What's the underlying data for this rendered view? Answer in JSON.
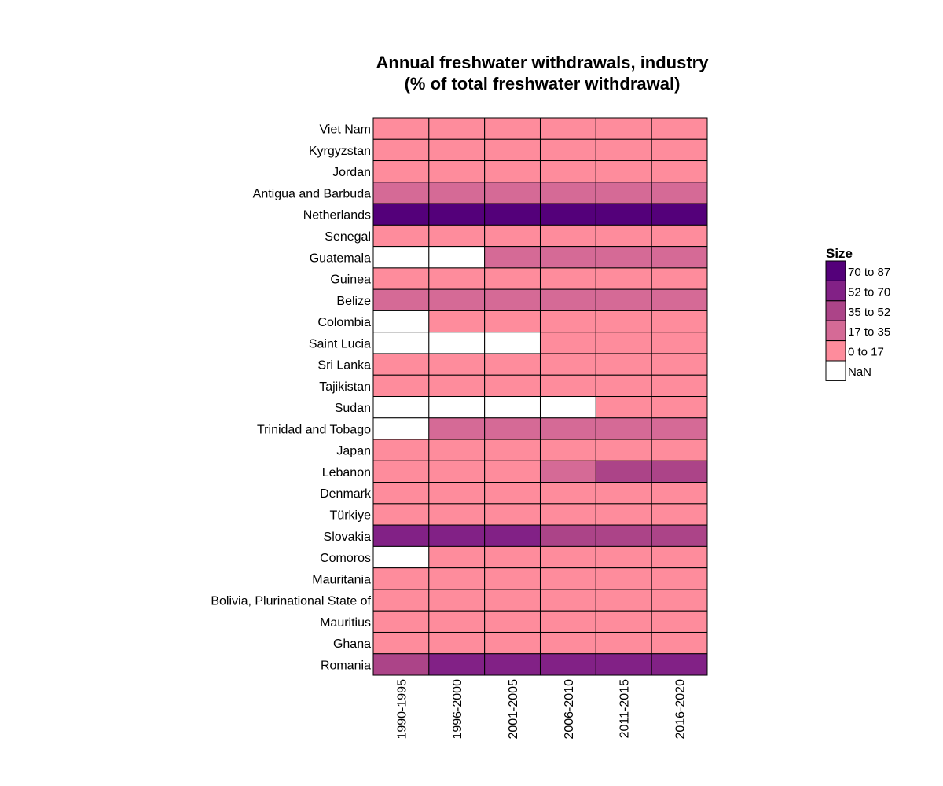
{
  "chart_data": {
    "type": "heatmap",
    "title": "Annual freshwater withdrawals, industry",
    "subtitle": "(% of total freshwater withdrawal)",
    "x_categories": [
      "1990-1995",
      "1996-2000",
      "2001-2005",
      "2006-2010",
      "2011-2015",
      "2016-2020"
    ],
    "y_categories": [
      "Viet Nam",
      "Kyrgyzstan",
      "Jordan",
      "Antigua and Barbuda",
      "Netherlands",
      "Senegal",
      "Guatemala",
      "Guinea",
      "Belize",
      "Colombia",
      "Saint Lucia",
      "Sri Lanka",
      "Tajikistan",
      "Sudan",
      "Trinidad and Tobago",
      "Japan",
      "Lebanon",
      "Denmark",
      "Türkiye",
      "Slovakia",
      "Comoros",
      "Mauritania",
      "Bolivia, Plurinational State of",
      "Mauritius",
      "Ghana",
      "Romania"
    ],
    "values": [
      [
        3,
        3,
        3,
        3,
        3,
        3
      ],
      [
        3,
        3,
        3,
        3,
        3,
        3
      ],
      [
        4,
        4,
        4,
        4,
        4,
        4
      ],
      [
        20,
        20,
        20,
        20,
        20,
        20
      ],
      [
        80,
        80,
        80,
        80,
        80,
        80
      ],
      [
        5,
        5,
        5,
        5,
        5,
        5
      ],
      [
        null,
        null,
        20,
        20,
        20,
        20
      ],
      [
        5,
        5,
        5,
        5,
        5,
        5
      ],
      [
        20,
        20,
        20,
        20,
        20,
        20
      ],
      [
        null,
        3,
        3,
        3,
        3,
        3
      ],
      [
        null,
        null,
        null,
        5,
        5,
        5
      ],
      [
        5,
        5,
        5,
        5,
        5,
        5
      ],
      [
        5,
        5,
        5,
        5,
        5,
        5
      ],
      [
        null,
        null,
        null,
        null,
        1,
        1
      ],
      [
        null,
        25,
        25,
        25,
        25,
        25
      ],
      [
        15,
        15,
        15,
        15,
        15,
        15
      ],
      [
        10,
        10,
        10,
        20,
        40,
        40
      ],
      [
        3,
        3,
        3,
        3,
        3,
        3
      ],
      [
        10,
        10,
        10,
        10,
        10,
        10
      ],
      [
        55,
        55,
        55,
        40,
        40,
        40
      ],
      [
        null,
        5,
        5,
        5,
        5,
        5
      ],
      [
        3,
        3,
        3,
        3,
        3,
        3
      ],
      [
        7,
        7,
        7,
        7,
        7,
        7
      ],
      [
        5,
        5,
        5,
        5,
        5,
        5
      ],
      [
        5,
        5,
        5,
        5,
        5,
        5
      ],
      [
        40,
        55,
        55,
        55,
        55,
        55
      ]
    ],
    "legend": {
      "title": "Size",
      "placement": "right",
      "items": [
        {
          "label": "70 to 87",
          "min": 70,
          "max": 87,
          "color": "#54007a"
        },
        {
          "label": "52 to 70",
          "min": 52,
          "max": 70,
          "color": "#822186"
        },
        {
          "label": "35 to 52",
          "min": 35,
          "max": 52,
          "color": "#ac4488"
        },
        {
          "label": "17 to 35",
          "min": 17,
          "max": 35,
          "color": "#d56a96"
        },
        {
          "label": "0 to 17",
          "min": 0,
          "max": 17,
          "color": "#fe8c9c"
        },
        {
          "label": "NaN",
          "min": null,
          "max": null,
          "color": "#ffffff"
        }
      ]
    },
    "grid": false
  }
}
